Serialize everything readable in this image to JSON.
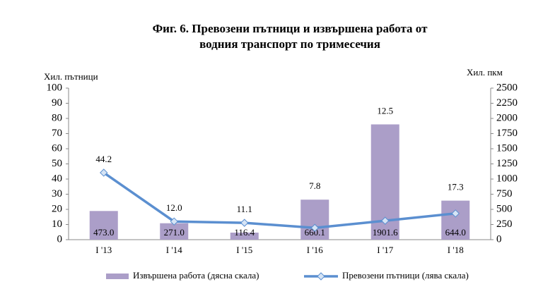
{
  "chart_data": {
    "type": "bar-line",
    "title": [
      "Фиг. 6. Превозени пътници и извършена работа от",
      "водния транспорт по тримесечия"
    ],
    "y_label": "Хил. пътници",
    "y2_label": "Хил. пкм",
    "categories": [
      "I '13",
      "I '14",
      "I '15",
      "I '16",
      "I '17",
      "I '18"
    ],
    "series": [
      {
        "name": "Извършена работа (дясна скала)",
        "type": "bar",
        "axis": "y2",
        "color": "#ab9ec8",
        "values": [
          473.0,
          271.0,
          116.4,
          660.1,
          1901.6,
          644.0
        ],
        "value_labels": [
          "473.0",
          "271.0",
          "116.4",
          "660.1",
          "1901.6",
          "644.0"
        ]
      },
      {
        "name": "Превозени пътници (лява скала)",
        "type": "line",
        "axis": "y",
        "color": "#5b8fd0",
        "values": [
          44.2,
          12.0,
          11.1,
          7.8,
          12.5,
          17.3
        ],
        "value_labels": [
          "44.2",
          "12.0",
          "11.1",
          "7.8",
          "12.5",
          "17.3"
        ]
      }
    ],
    "ylim": [
      0,
      100
    ],
    "yticks": [
      0,
      10,
      20,
      30,
      40,
      50,
      60,
      70,
      80,
      90,
      100
    ],
    "y2lim": [
      0,
      2500
    ],
    "y2ticks": [
      0,
      250,
      500,
      750,
      1000,
      1250,
      1500,
      1750,
      2000,
      2250,
      2500
    ],
    "grid": false,
    "legend": "bottom"
  }
}
